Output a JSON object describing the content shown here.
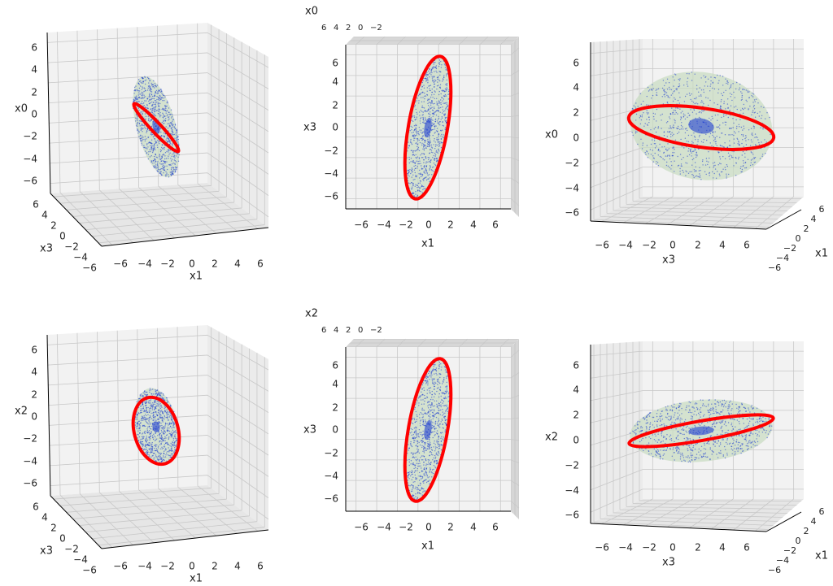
{
  "chart_data": [
    {
      "type": "scatter3d",
      "view": "oblique",
      "vertical_axis": "x0",
      "depth_axis": "x3",
      "horizontal_axis": "x1",
      "ticks": [
        "-6",
        "-4",
        "-2",
        "0",
        "2",
        "4",
        "6"
      ],
      "lim": [
        -7,
        7
      ],
      "grid": true,
      "series": [
        {
          "kind": "point-cloud ellipsoid",
          "color": "#0000cc",
          "fill": "#c8dcc0"
        },
        {
          "kind": "ellipse curve",
          "color": "#ff0000"
        }
      ]
    },
    {
      "type": "scatter3d",
      "view": "top",
      "vertical_axis": "x3",
      "depth_axis": "x0",
      "horizontal_axis": "x1",
      "ticks": [
        "-6",
        "-4",
        "-2",
        "0",
        "2",
        "4",
        "6"
      ],
      "lim": [
        -7,
        7
      ],
      "grid": true,
      "series": [
        {
          "kind": "point-cloud ellipsoid",
          "color": "#0000cc",
          "fill": "#c8dcc0"
        },
        {
          "kind": "ellipse curve",
          "color": "#ff0000"
        }
      ]
    },
    {
      "type": "scatter3d",
      "view": "side",
      "vertical_axis": "x0",
      "depth_axis": "x1",
      "horizontal_axis": "x3",
      "ticks": [
        "-6",
        "-4",
        "-2",
        "0",
        "2",
        "4",
        "6"
      ],
      "lim": [
        -7,
        7
      ],
      "grid": true,
      "series": [
        {
          "kind": "point-cloud ellipsoid",
          "color": "#0000cc",
          "fill": "#c8dcc0"
        },
        {
          "kind": "ellipse curve",
          "color": "#ff0000"
        }
      ]
    },
    {
      "type": "scatter3d",
      "view": "oblique",
      "vertical_axis": "x2",
      "depth_axis": "x3",
      "horizontal_axis": "x1",
      "ticks": [
        "-6",
        "-4",
        "-2",
        "0",
        "2",
        "4",
        "6"
      ],
      "lim": [
        -7,
        7
      ],
      "grid": true,
      "series": [
        {
          "kind": "point-cloud ellipsoid",
          "color": "#0000cc",
          "fill": "#c8dcc0"
        },
        {
          "kind": "ellipse curve",
          "color": "#ff0000"
        }
      ]
    },
    {
      "type": "scatter3d",
      "view": "top",
      "vertical_axis": "x3",
      "depth_axis": "x2",
      "horizontal_axis": "x1",
      "ticks": [
        "-6",
        "-4",
        "-2",
        "0",
        "2",
        "4",
        "6"
      ],
      "lim": [
        -7,
        7
      ],
      "grid": true,
      "series": [
        {
          "kind": "point-cloud ellipsoid",
          "color": "#0000cc",
          "fill": "#c8dcc0"
        },
        {
          "kind": "ellipse curve",
          "color": "#ff0000"
        }
      ]
    },
    {
      "type": "scatter3d",
      "view": "side",
      "vertical_axis": "x2",
      "depth_axis": "x1",
      "horizontal_axis": "x3",
      "ticks": [
        "-6",
        "-4",
        "-2",
        "0",
        "2",
        "4",
        "6"
      ],
      "lim": [
        -7,
        7
      ],
      "grid": true,
      "series": [
        {
          "kind": "point-cloud ellipsoid",
          "color": "#0000cc",
          "fill": "#c8dcc0"
        },
        {
          "kind": "ellipse curve",
          "color": "#ff0000"
        }
      ]
    }
  ]
}
